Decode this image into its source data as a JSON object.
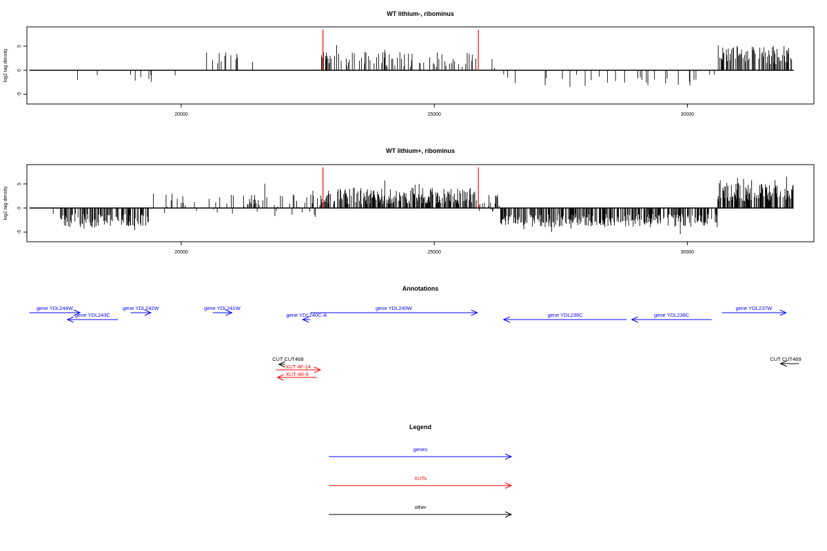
{
  "chart_data": [
    {
      "type": "bar",
      "title": "WT lithium-, ribominus",
      "ylabel": "log2 tag density",
      "xlim": [
        16950,
        32500
      ],
      "ylim": [
        -7,
        9
      ],
      "x_ticks": [
        20000,
        25000,
        30000
      ],
      "y_ticks": [
        -5,
        0,
        5
      ],
      "grid": false,
      "track_range": [
        17000,
        32100
      ],
      "marker_lines": {
        "color": "#ff0000",
        "x": [
          22800,
          25870
        ]
      },
      "signal_segments": [
        {
          "from": 17000,
          "to": 17700,
          "density": 0.0,
          "mean": 0,
          "amp": 0
        },
        {
          "from": 17700,
          "to": 19900,
          "density": 0.05,
          "mean": -2.0,
          "amp": 1.2
        },
        {
          "from": 19900,
          "to": 20500,
          "density": 0.01,
          "mean": 0.5,
          "amp": 2
        },
        {
          "from": 20500,
          "to": 21800,
          "density": 0.07,
          "mean": 2.5,
          "amp": 1.2
        },
        {
          "from": 21800,
          "to": 22750,
          "density": 0.01,
          "mean": -1.5,
          "amp": 1
        },
        {
          "from": 22750,
          "to": 25850,
          "density": 0.22,
          "mean": 2.3,
          "amp": 1.6
        },
        {
          "from": 25850,
          "to": 26300,
          "density": 0.05,
          "mean": 1.0,
          "amp": 1.5
        },
        {
          "from": 26300,
          "to": 30600,
          "density": 0.06,
          "mean": -2.0,
          "amp": 1.3
        },
        {
          "from": 30600,
          "to": 32100,
          "density": 0.45,
          "mean": 3.2,
          "amp": 2.0
        }
      ]
    },
    {
      "type": "bar",
      "title": "WT lithium+, ribominus",
      "ylabel": "log2 tag density",
      "xlim": [
        16950,
        32500
      ],
      "ylim": [
        -7,
        9
      ],
      "x_ticks": [
        20000,
        25000,
        30000
      ],
      "y_ticks": [
        -5,
        0,
        5
      ],
      "grid": false,
      "track_range": [
        17000,
        32100
      ],
      "marker_lines": {
        "color": "#ff0000",
        "x": [
          22800,
          25870
        ]
      },
      "signal_segments": [
        {
          "from": 17000,
          "to": 17600,
          "density": 0.02,
          "mean": -0.5,
          "amp": 1
        },
        {
          "from": 17600,
          "to": 19400,
          "density": 0.5,
          "mean": -2.6,
          "amp": 1.4
        },
        {
          "from": 19400,
          "to": 21500,
          "density": 0.15,
          "mean": 0.8,
          "amp": 2.2
        },
        {
          "from": 21500,
          "to": 22750,
          "density": 0.25,
          "mean": 0.5,
          "amp": 2.5
        },
        {
          "from": 22750,
          "to": 25850,
          "density": 0.6,
          "mean": 2.5,
          "amp": 1.7
        },
        {
          "from": 25850,
          "to": 26300,
          "density": 0.2,
          "mean": 1.0,
          "amp": 1.8
        },
        {
          "from": 26300,
          "to": 30600,
          "density": 0.55,
          "mean": -2.6,
          "amp": 1.4
        },
        {
          "from": 30600,
          "to": 32100,
          "density": 0.7,
          "mean": 3.3,
          "amp": 1.9
        }
      ]
    }
  ],
  "annotations": {
    "title": "Annotations",
    "genes": [
      {
        "label": "gene YDL244W",
        "x1": 17000,
        "x2": 18000,
        "strand": "+",
        "row": 0
      },
      {
        "label": "gene YDL243C",
        "x1": 17750,
        "x2": 18750,
        "strand": "-",
        "row": 1
      },
      {
        "label": "gene YDL242W",
        "x1": 19000,
        "x2": 19400,
        "strand": "+",
        "row": 0
      },
      {
        "label": "gene YDL241W",
        "x1": 20620,
        "x2": 21000,
        "strand": "+",
        "row": 0
      },
      {
        "label": "gene YDL240C-A",
        "x1": 22400,
        "x2": 22550,
        "strand": "-",
        "row": 1
      },
      {
        "label": "gene YDL240W",
        "x1": 22550,
        "x2": 25850,
        "strand": "+",
        "row": 0
      },
      {
        "label": "gene YDL239C",
        "x1": 26370,
        "x2": 28800,
        "strand": "-",
        "row": 1
      },
      {
        "label": "gene YDL238C",
        "x1": 28900,
        "x2": 30480,
        "strand": "-",
        "row": 1
      },
      {
        "label": "gene YDL237W",
        "x1": 30680,
        "x2": 31950,
        "strand": "+",
        "row": 0
      }
    ],
    "others": [
      {
        "label": "CUT CUT468",
        "x1": 21930,
        "x2": 22050,
        "strand": "-"
      },
      {
        "label": "CUT CUT469",
        "x1": 31840,
        "x2": 32200,
        "strand": "-"
      }
    ],
    "xuts": [
      {
        "label": "XUT 4F-14",
        "x1": 21870,
        "x2": 22750,
        "strand": "+"
      },
      {
        "label": "XUT 4R-9",
        "x1": 21900,
        "x2": 22680,
        "strand": "-"
      }
    ]
  },
  "legend": {
    "title": "Legend",
    "items": [
      {
        "label": "genes",
        "color": "#0000ff"
      },
      {
        "label": "XUTs",
        "color": "#ff0000"
      },
      {
        "label": "other",
        "color": "#000000"
      }
    ]
  }
}
